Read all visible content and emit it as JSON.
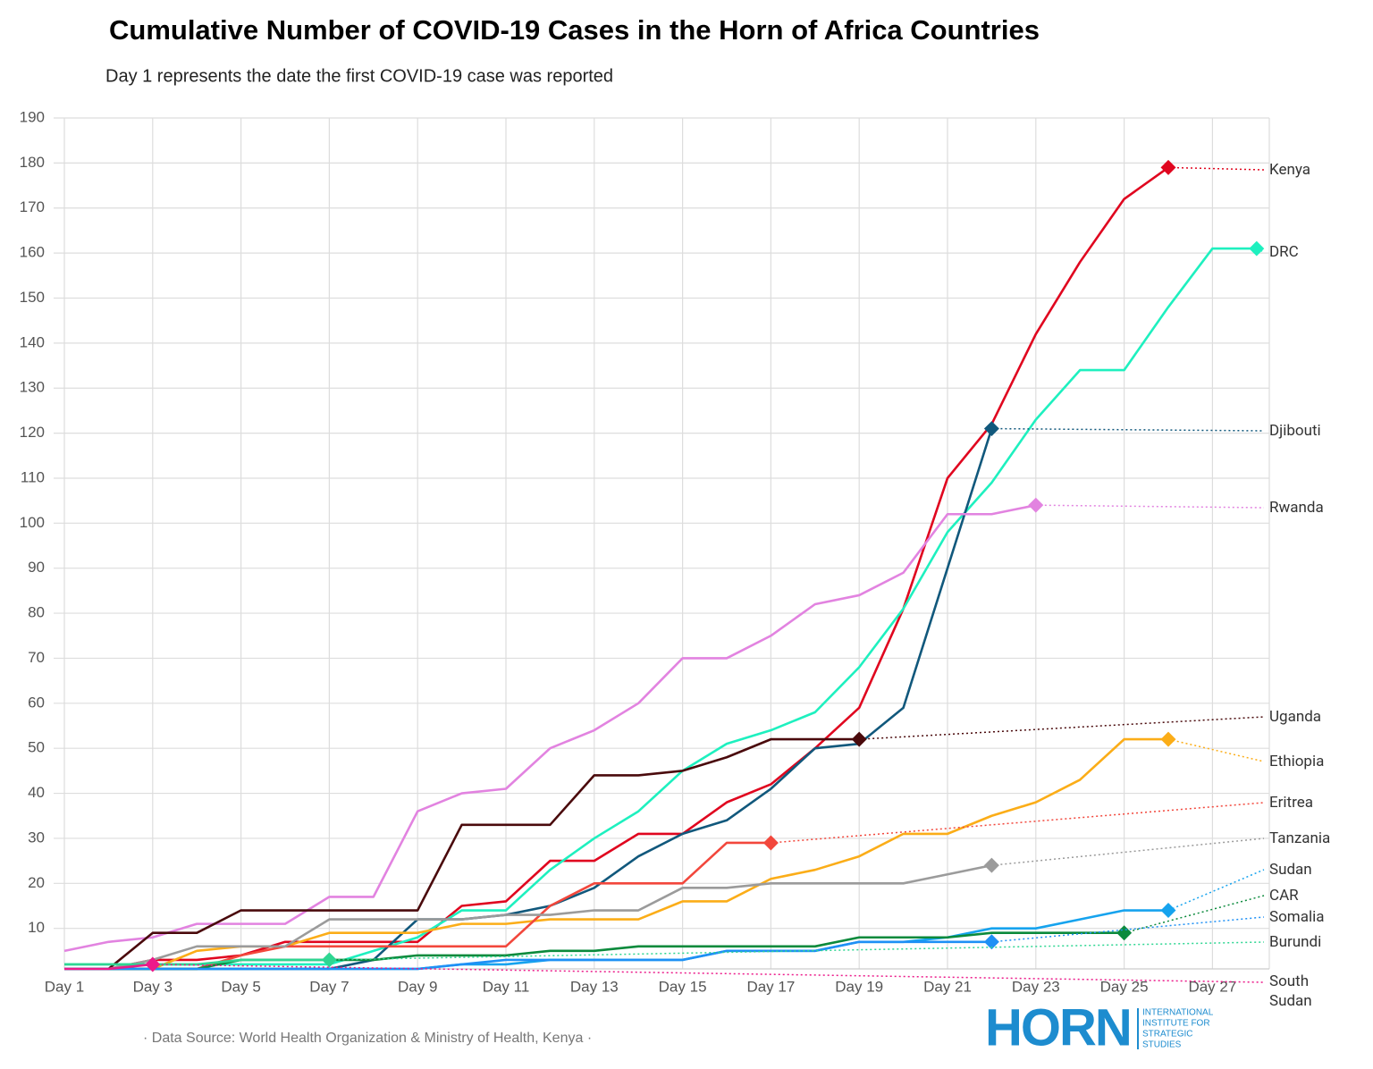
{
  "chart_data": {
    "type": "line",
    "title": "Cumulative Number of COVID-19 Cases in the Horn of Africa Countries",
    "subtitle": "Day 1 represents the date the first COVID-19 case was reported",
    "source": "· Data Source: World Health Organization & Ministry of Health, Kenya ·",
    "logo": {
      "name": "HORN",
      "lines": [
        "INTERNATIONAL",
        "INSTITUTE FOR",
        "STRATEGIC",
        "STUDIES"
      ]
    },
    "categories": [
      "Day 1",
      null,
      "Day 3",
      null,
      "Day 5",
      null,
      "Day 7",
      null,
      "Day 9",
      null,
      "Day 11",
      null,
      "Day 13",
      null,
      "Day 15",
      null,
      "Day 17",
      null,
      "Day 19",
      null,
      "Day 21",
      null,
      "Day 23",
      null,
      "Day 25",
      null,
      "Day 27",
      null
    ],
    "ylim": [
      1,
      190
    ],
    "yticks": [
      10,
      20,
      30,
      40,
      50,
      60,
      70,
      80,
      90,
      100,
      110,
      120,
      130,
      140,
      150,
      160,
      170,
      180,
      190
    ],
    "grid": true,
    "series": [
      {
        "name": "Kenya",
        "color": "#e0061f",
        "values": [
          1,
          1,
          3,
          3,
          4,
          7,
          7,
          7,
          7,
          15,
          16,
          25,
          25,
          31,
          31,
          38,
          42,
          50,
          59,
          81,
          110,
          122,
          142,
          158,
          172,
          179,
          null,
          null
        ]
      },
      {
        "name": "DRC",
        "color": "#1ef0bf",
        "values": [
          2,
          2,
          2,
          2,
          2,
          2,
          2,
          5,
          8,
          14,
          14,
          23,
          30,
          36,
          45,
          51,
          54,
          58,
          68,
          81,
          98,
          109,
          123,
          134,
          134,
          148,
          161,
          161
        ]
      },
      {
        "name": "Djibouti",
        "color": "#11587c",
        "values": [
          1,
          1,
          1,
          1,
          1,
          1,
          1,
          3,
          12,
          12,
          13,
          15,
          19,
          26,
          31,
          34,
          41,
          50,
          51,
          59,
          90,
          121,
          null,
          null,
          null,
          null,
          null,
          null
        ]
      },
      {
        "name": "Rwanda",
        "color": "#e283e0",
        "values": [
          5,
          7,
          8,
          11,
          11,
          11,
          17,
          17,
          36,
          40,
          41,
          50,
          54,
          60,
          70,
          70,
          75,
          82,
          84,
          89,
          102,
          102,
          104,
          null,
          null,
          null,
          null,
          null
        ]
      },
      {
        "name": "Uganda",
        "color": "#4a0a0c",
        "values": [
          1,
          1,
          9,
          9,
          14,
          14,
          14,
          14,
          14,
          33,
          33,
          33,
          44,
          44,
          45,
          48,
          52,
          52,
          52,
          null,
          null,
          null,
          null,
          null,
          null,
          null,
          null,
          null
        ]
      },
      {
        "name": "Ethiopia",
        "color": "#fbad18",
        "values": [
          1,
          1,
          1,
          5,
          6,
          6,
          9,
          9,
          9,
          11,
          11,
          12,
          12,
          12,
          16,
          16,
          21,
          23,
          26,
          31,
          31,
          35,
          38,
          43,
          52,
          52,
          null,
          null
        ]
      },
      {
        "name": "Eritrea",
        "color": "#f2473c",
        "values": [
          1,
          1,
          1,
          1,
          4,
          6,
          6,
          6,
          6,
          6,
          6,
          15,
          20,
          20,
          20,
          29,
          29,
          null,
          null,
          null,
          null,
          null,
          null,
          null,
          null,
          null,
          null,
          null
        ]
      },
      {
        "name": "Tanzania",
        "color": "#9b9b9b",
        "values": [
          1,
          1,
          3,
          6,
          6,
          6,
          12,
          12,
          12,
          12,
          13,
          13,
          14,
          14,
          19,
          19,
          20,
          20,
          20,
          20,
          22,
          24,
          null,
          null,
          null,
          null,
          null,
          null
        ]
      },
      {
        "name": "Sudan",
        "color": "#16a3ee",
        "values": [
          1,
          1,
          1,
          1,
          1,
          1,
          1,
          1,
          1,
          2,
          2,
          3,
          3,
          3,
          3,
          5,
          5,
          5,
          7,
          7,
          8,
          10,
          10,
          12,
          14,
          14,
          null,
          null
        ]
      },
      {
        "name": "CAR",
        "color": "#0b8a3c",
        "values": [
          1,
          1,
          1,
          1,
          3,
          3,
          3,
          3,
          4,
          4,
          4,
          5,
          5,
          6,
          6,
          6,
          6,
          6,
          8,
          8,
          8,
          9,
          9,
          9,
          9,
          null,
          null,
          null
        ]
      },
      {
        "name": "Somalia",
        "color": "#1e90f5",
        "values": [
          1,
          1,
          1,
          1,
          1,
          1,
          1,
          1,
          1,
          2,
          3,
          3,
          3,
          3,
          3,
          5,
          5,
          5,
          7,
          7,
          7,
          7,
          null,
          null,
          null,
          null,
          null,
          null
        ]
      },
      {
        "name": "Burundi",
        "color": "#2ed692",
        "values": [
          2,
          2,
          2,
          2,
          3,
          3,
          3,
          null,
          null,
          null,
          null,
          null,
          null,
          null,
          null,
          null,
          null,
          null,
          null,
          null,
          null,
          null,
          null,
          null,
          null,
          null,
          null,
          null
        ]
      },
      {
        "name": "South Sudan",
        "color": "#ec1a8a",
        "values": [
          1,
          1,
          2,
          null,
          null,
          null,
          null,
          null,
          null,
          null,
          null,
          null,
          null,
          null,
          null,
          null,
          null,
          null,
          null,
          null,
          null,
          null,
          null,
          null,
          null,
          null,
          null,
          null
        ]
      }
    ]
  }
}
